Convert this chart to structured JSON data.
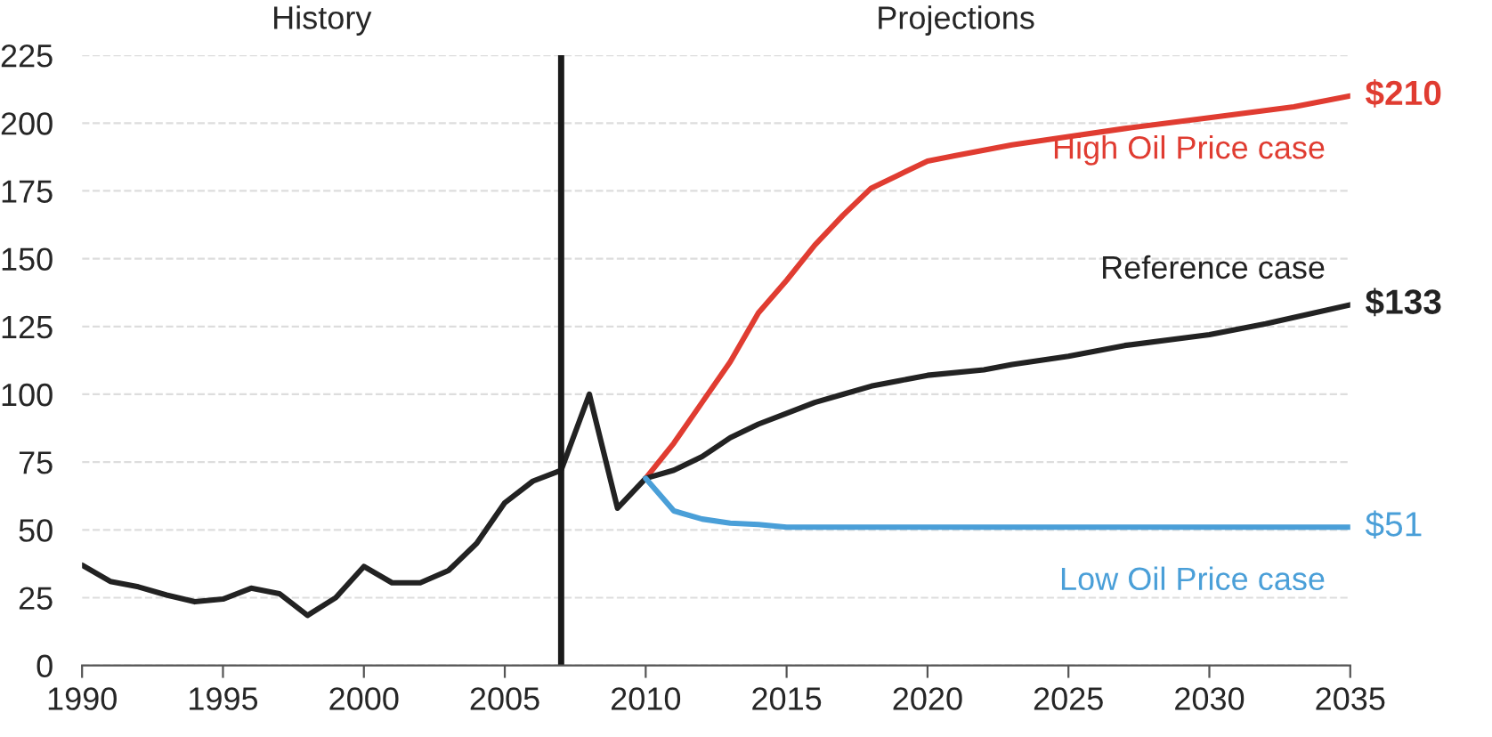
{
  "chart_data": {
    "type": "line",
    "xlim": [
      1990,
      2035
    ],
    "ylim": [
      0,
      225
    ],
    "xticks": [
      1990,
      1995,
      2000,
      2005,
      2010,
      2015,
      2020,
      2025,
      2030,
      2035
    ],
    "yticks": [
      0,
      25,
      50,
      75,
      100,
      125,
      150,
      175,
      200,
      225
    ],
    "grid": "y",
    "legend": false,
    "marker": "none",
    "line_style": "solid",
    "ref_lines": [
      {
        "axis": "x",
        "value": 2007,
        "color": "#1a1a1a"
      }
    ],
    "annotations": [
      "History",
      "Projections"
    ],
    "series": [
      {
        "color": "#222222",
        "x": [
          1990,
          1991,
          1992,
          1993,
          1994,
          1995,
          1996,
          1997,
          1998,
          1999,
          2000,
          2001,
          2002,
          2003,
          2004,
          2005,
          2006,
          2007,
          2008,
          2009,
          2010
        ],
        "values": [
          37,
          31,
          29,
          26,
          23.5,
          24.5,
          28.5,
          26.5,
          18.5,
          25,
          36.5,
          30.5,
          30.5,
          35,
          45,
          60,
          68,
          72,
          100,
          58,
          69
        ]
      },
      {
        "name": "High Oil Price case",
        "color": "#e03c31",
        "x": [
          2010,
          2011,
          2012,
          2013,
          2014,
          2015,
          2016,
          2017,
          2018,
          2019,
          2020,
          2021,
          2022,
          2023,
          2025,
          2027,
          2030,
          2033,
          2035
        ],
        "values": [
          69,
          82,
          97,
          112,
          130,
          142,
          155,
          166,
          176,
          181,
          186,
          188,
          190,
          192,
          195,
          198,
          202,
          206,
          210
        ],
        "value_labels": [
          null,
          null,
          null,
          null,
          null,
          null,
          null,
          null,
          null,
          null,
          null,
          null,
          null,
          null,
          null,
          null,
          null,
          null,
          "$210"
        ]
      },
      {
        "name": "Reference case",
        "color": "#222222",
        "x": [
          2010,
          2011,
          2012,
          2013,
          2014,
          2015,
          2016,
          2017,
          2018,
          2019,
          2020,
          2022,
          2023,
          2025,
          2027,
          2030,
          2032,
          2035
        ],
        "values": [
          69,
          72,
          77,
          84,
          89,
          93,
          97,
          100,
          103,
          105,
          107,
          109,
          111,
          114,
          118,
          122,
          126,
          133
        ],
        "value_labels": [
          null,
          null,
          null,
          null,
          null,
          null,
          null,
          null,
          null,
          null,
          null,
          null,
          null,
          null,
          null,
          null,
          null,
          "$133"
        ]
      },
      {
        "name": "Low Oil Price case",
        "color": "#4a9fd8",
        "x": [
          2010,
          2011,
          2012,
          2013,
          2014,
          2015,
          2020,
          2025,
          2030,
          2034,
          2035
        ],
        "values": [
          69,
          57,
          54,
          52.5,
          52,
          51,
          51,
          51,
          51,
          51,
          51
        ],
        "value_labels": [
          null,
          null,
          null,
          null,
          null,
          null,
          null,
          null,
          null,
          null,
          "$51"
        ]
      }
    ]
  }
}
